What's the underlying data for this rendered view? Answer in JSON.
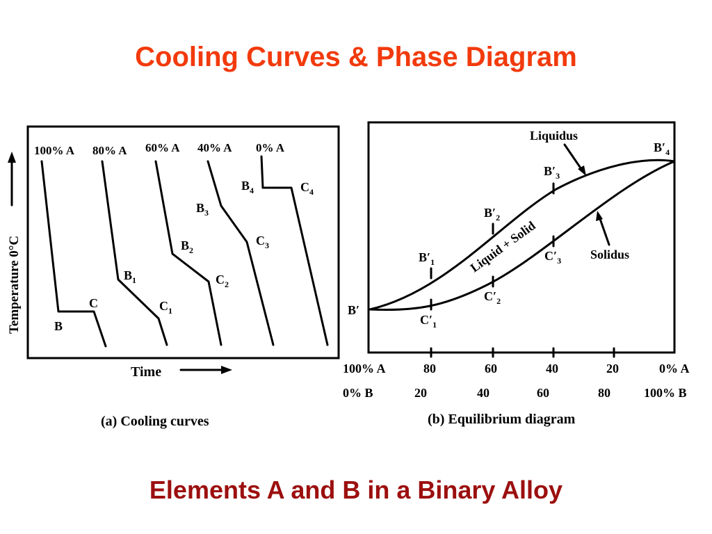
{
  "slide": {
    "title": "Cooling Curves & Phase Diagram",
    "subtitle": "Elements A and B  in a Binary Alloy",
    "title_color": "#f23a0c",
    "subtitle_color": "#9c0f0f"
  },
  "cooling": {
    "caption": "(a) Cooling curves",
    "y_axis_label": "Temperature 0°C",
    "x_axis_label": "Time",
    "curve_headers": [
      "100% A",
      "80% A",
      "60% A",
      "40% A",
      "0% A"
    ],
    "points": {
      "b": "B",
      "c": "C",
      "b1": "B",
      "b1_sub": "1",
      "c1": "C",
      "c1_sub": "1",
      "b2": "B",
      "b2_sub": "2",
      "c2": "C",
      "c2_sub": "2",
      "b3": "B",
      "b3_sub": "3",
      "c3": "C",
      "c3_sub": "3",
      "b4": "B",
      "b4_sub": "4",
      "c4": "C",
      "c4_sub": "4"
    }
  },
  "equilibrium": {
    "caption": "(b) Equilibrium diagram",
    "liquidus": "Liquidus",
    "solidus": "Solidus",
    "region": "Liquid + Solid",
    "points": {
      "b_prime": "B′",
      "b1": "B′",
      "b1_sub": "1",
      "b2": "B′",
      "b2_sub": "2",
      "b3": "B′",
      "b3_sub": "3",
      "b4": "B′",
      "b4_sub": "4",
      "c1": "C′",
      "c1_sub": "1",
      "c2": "C′",
      "c2_sub": "2",
      "c3": "C′",
      "c3_sub": "3"
    },
    "a_ticks": [
      "100% A",
      "80",
      "60",
      "40",
      "20",
      "0% A"
    ],
    "b_ticks": [
      "0% B",
      "20",
      "40",
      "60",
      "80",
      "100% B"
    ]
  }
}
